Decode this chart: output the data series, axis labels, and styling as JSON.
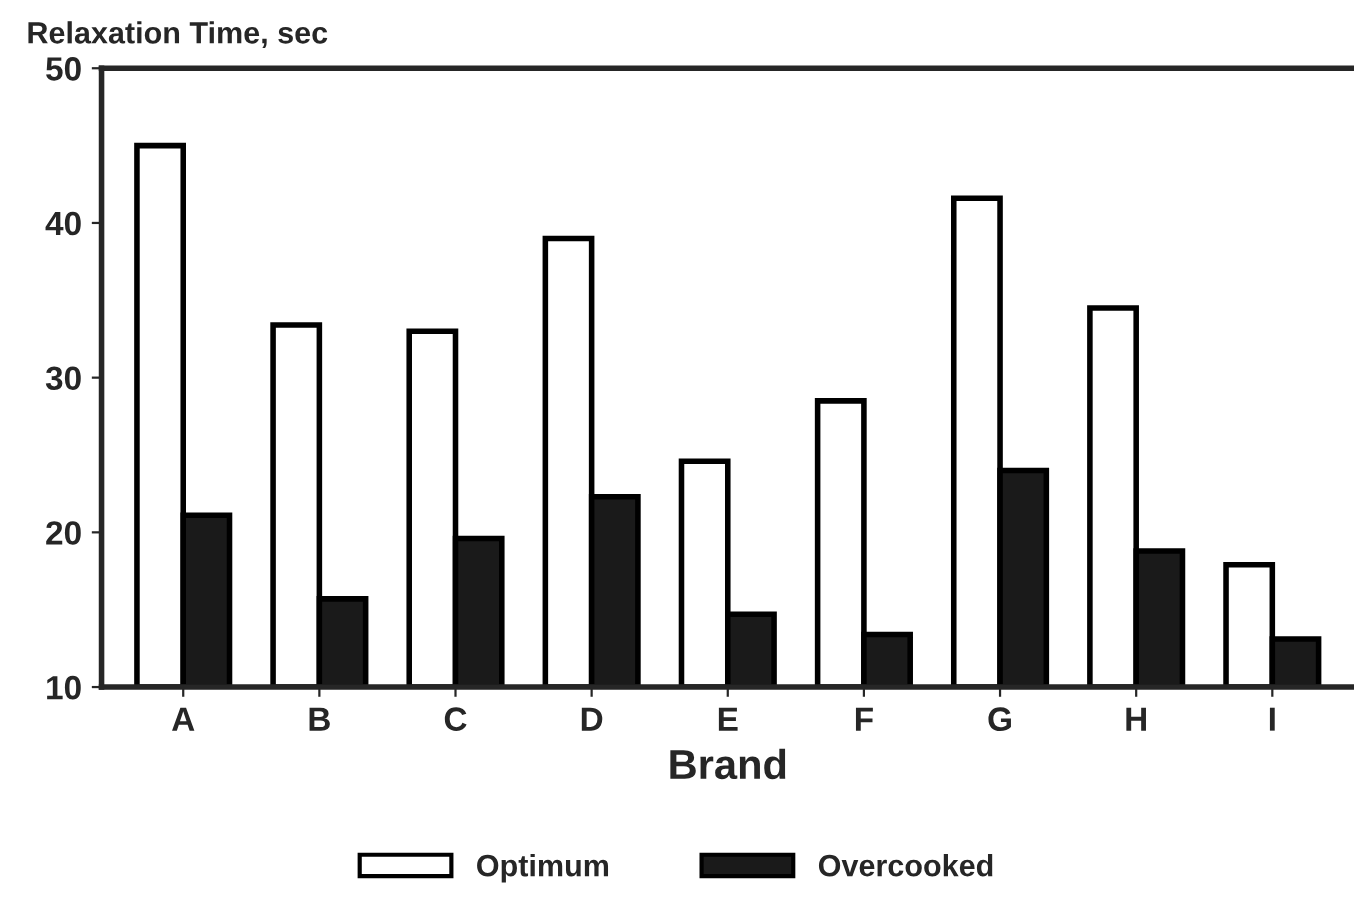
{
  "chart_data": {
    "type": "bar",
    "ylabel": "Relaxation Time, sec",
    "xlabel": "Brand",
    "categories": [
      "A",
      "B",
      "C",
      "D",
      "E",
      "F",
      "G",
      "H",
      "I"
    ],
    "series": [
      {
        "name": "Optimum",
        "color": "#ffffff",
        "values": [
          45,
          33.4,
          33,
          39,
          24.6,
          28.5,
          41.6,
          34.5,
          17.9
        ]
      },
      {
        "name": "Overcooked",
        "color": "#1a1a1a",
        "values": [
          21.1,
          15.7,
          19.6,
          22.3,
          14.7,
          13.4,
          24,
          18.8,
          13.1
        ]
      }
    ],
    "ylim": [
      10,
      50
    ],
    "yticks": [
      10,
      20,
      30,
      40,
      50
    ],
    "grid": false,
    "legend": "bottom"
  }
}
